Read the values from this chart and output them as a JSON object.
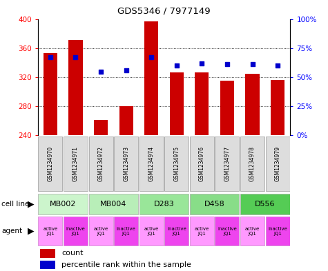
{
  "title": "GDS5346 / 7977149",
  "samples": [
    "GSM1234970",
    "GSM1234971",
    "GSM1234972",
    "GSM1234973",
    "GSM1234974",
    "GSM1234975",
    "GSM1234976",
    "GSM1234977",
    "GSM1234978",
    "GSM1234979"
  ],
  "counts": [
    353,
    371,
    261,
    280,
    397,
    327,
    327,
    315,
    325,
    316
  ],
  "percentiles": [
    67,
    67,
    55,
    56,
    67,
    60,
    62,
    61,
    61,
    60
  ],
  "ymin": 240,
  "ymax": 400,
  "yticks": [
    240,
    280,
    320,
    360,
    400
  ],
  "y2ticks": [
    0,
    25,
    50,
    75,
    100
  ],
  "cell_lines": [
    {
      "label": "MB002",
      "cols": [
        0,
        1
      ],
      "color": "#ccf5cc"
    },
    {
      "label": "MB004",
      "cols": [
        2,
        3
      ],
      "color": "#b8eeb8"
    },
    {
      "label": "D283",
      "cols": [
        4,
        5
      ],
      "color": "#99e699"
    },
    {
      "label": "D458",
      "cols": [
        6,
        7
      ],
      "color": "#88dd88"
    },
    {
      "label": "D556",
      "cols": [
        8,
        9
      ],
      "color": "#55cc55"
    }
  ],
  "agents": [
    "active\nJQ1",
    "inactive\nJQ1",
    "active\nJQ1",
    "inactive\nJQ1",
    "active\nJQ1",
    "inactive\nJQ1",
    "active\nJQ1",
    "inactive\nJQ1",
    "active\nJQ1",
    "inactive\nJQ1"
  ],
  "agent_active_color": "#ff99ff",
  "agent_inactive_color": "#ee44ee",
  "bar_color": "#cc0000",
  "dot_color": "#0000cc",
  "bar_width": 0.55,
  "sample_box_color": "#dddddd",
  "sample_box_edge": "#999999"
}
